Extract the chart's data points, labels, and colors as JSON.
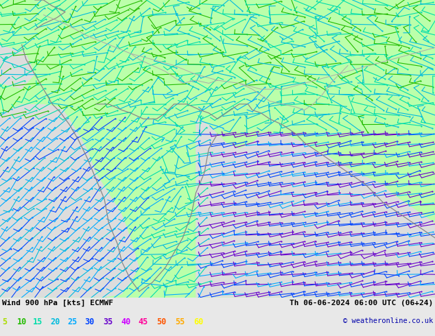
{
  "title_left": "Wind 900 hPa [kts] ECMWF",
  "title_right": "Th 06-06-2024 06:00 UTC (06+24)",
  "copyright": "© weatheronline.co.uk",
  "legend_values": [
    5,
    10,
    15,
    20,
    25,
    30,
    35,
    40,
    45,
    50,
    55,
    60
  ],
  "legend_colors": [
    "#aadd00",
    "#22bb00",
    "#00ddaa",
    "#00bbdd",
    "#00aaff",
    "#0044ff",
    "#6600cc",
    "#cc00ff",
    "#ff0099",
    "#ff5500",
    "#ffaa00",
    "#ffff00"
  ],
  "land_color": "#bbffaa",
  "sea_color": "#dddddd",
  "coastline_color": "#888888",
  "border_color": "#aaaaaa",
  "bottom_bar_color": "#e8e8e8",
  "figsize": [
    6.34,
    4.9
  ],
  "dpi": 100,
  "wind_colors": {
    "5": "#aadd00",
    "10": "#22bb00",
    "15": "#00ddaa",
    "20": "#00bbdd",
    "25": "#00aaff",
    "30": "#0044ff",
    "35": "#6600cc",
    "40": "#cc00ff",
    "45": "#ff0099",
    "50": "#ff5500",
    "55": "#ffaa00",
    "60": "#ffff00"
  }
}
